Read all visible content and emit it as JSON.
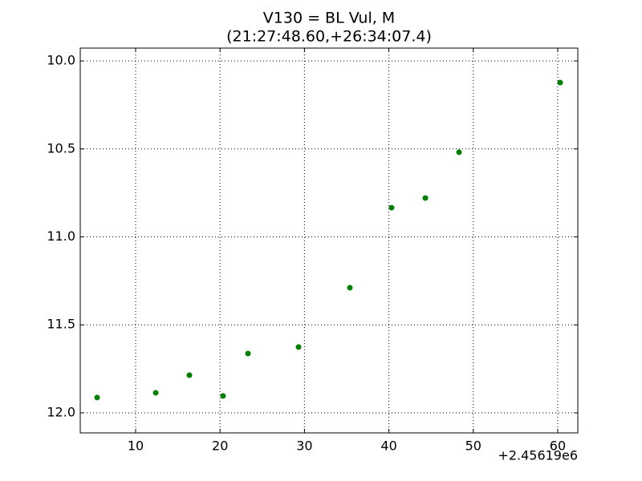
{
  "chart_data": {
    "type": "scatter",
    "title": "V130 = BL Vul, M",
    "subtitle": "(21:27:48.60,+26:34:07.4)",
    "x_offset_label": "+2.45619e6",
    "x": [
      5.44,
      12.38,
      16.37,
      20.36,
      23.31,
      29.3,
      35.38,
      40.32,
      44.32,
      48.31,
      60.29
    ],
    "values": [
      11.913,
      11.886,
      11.786,
      11.904,
      11.663,
      11.626,
      11.289,
      10.834,
      10.779,
      10.519,
      10.123
    ],
    "color": "#008000",
    "xlim": [
      3.44,
      62.38
    ],
    "xticks": [
      10,
      20,
      30,
      40,
      50,
      60
    ],
    "ylim": [
      12.114,
      9.927
    ],
    "yticks": [
      {
        "value": 10,
        "label": "10.0"
      },
      10.5,
      {
        "value": 11,
        "label": "11.0"
      },
      11.5,
      {
        "value": 12,
        "label": "12.0"
      }
    ],
    "grid": true
  }
}
